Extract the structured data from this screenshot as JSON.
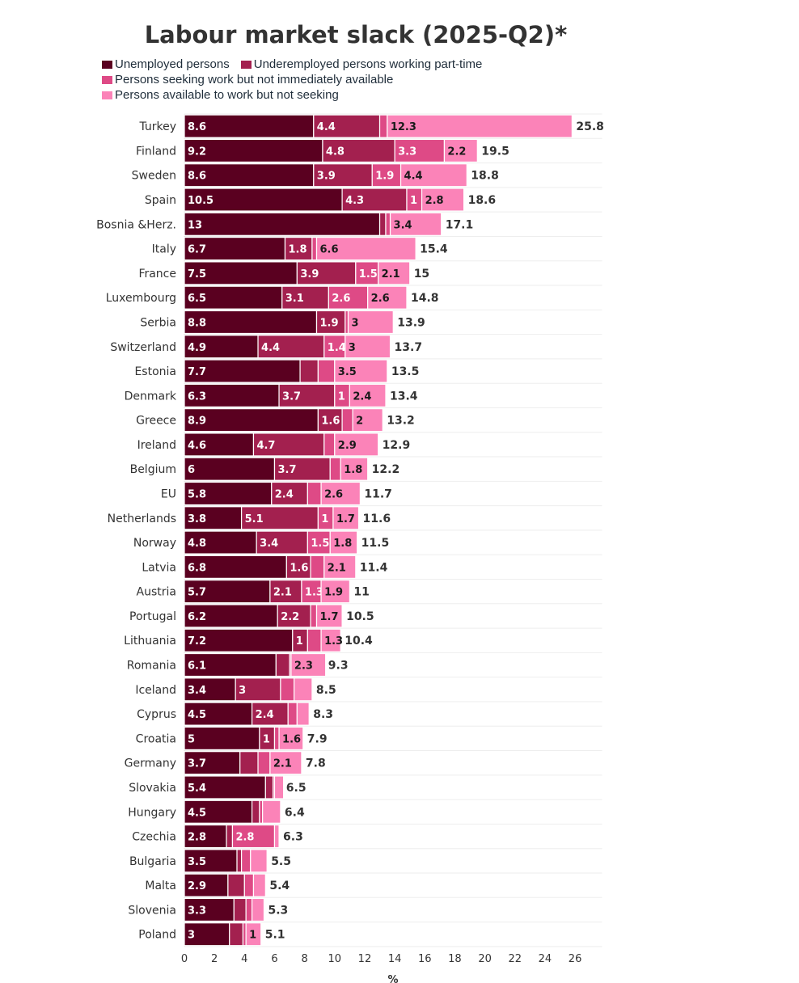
{
  "title": "Labour market slack (2025-Q2)*",
  "chart_data": {
    "type": "bar",
    "orientation": "horizontal",
    "stacked": true,
    "title": "Labour market slack (2025-Q2)*",
    "xlabel": "%",
    "ylabel": "",
    "xlim": [
      0,
      27.8
    ],
    "x_ticks": [
      "0",
      "2",
      "4",
      "6",
      "8",
      "10",
      "12",
      "14",
      "16",
      "18",
      "20",
      "22",
      "24",
      "26"
    ],
    "grid": true,
    "legend_position": "top-left",
    "categories": [
      "Turkey",
      "Finland",
      "Sweden",
      "Spain",
      "Bosnia &Herz.",
      "Italy",
      "France",
      "Luxembourg",
      "Serbia",
      "Switzerland",
      "Estonia",
      "Denmark",
      "Greece",
      "Ireland",
      "Belgium",
      "EU",
      "Netherlands",
      "Norway",
      "Latvia",
      "Austria",
      "Portugal",
      "Lithuania",
      "Romania",
      "Iceland",
      "Cyprus",
      "Croatia",
      "Germany",
      "Slovakia",
      "Hungary",
      "Czechia",
      "Bulgaria",
      "Malta",
      "Slovenia",
      "Poland"
    ],
    "series": [
      {
        "name": "Unemployed persons",
        "color": "#5a0020",
        "values": [
          8.6,
          9.2,
          8.6,
          10.5,
          13,
          6.7,
          7.5,
          6.5,
          8.8,
          4.9,
          7.7,
          6.3,
          8.9,
          4.6,
          6,
          5.8,
          3.8,
          4.8,
          6.8,
          5.7,
          6.2,
          7.2,
          6.1,
          3.4,
          4.5,
          5,
          3.7,
          5.4,
          4.5,
          2.8,
          3.5,
          2.9,
          3.3,
          3
        ]
      },
      {
        "name": "Underemployed persons working part-time",
        "color": "#a3204f",
        "values": [
          4.4,
          4.8,
          3.9,
          4.3,
          0.4,
          1.8,
          3.9,
          3.1,
          1.9,
          4.4,
          1.2,
          3.7,
          1.6,
          4.7,
          3.7,
          2.4,
          5.1,
          3.4,
          1.6,
          2.1,
          2.2,
          1,
          0.9,
          3,
          2.4,
          1,
          1.2,
          0.5,
          0.5,
          0.4,
          0.3,
          1.1,
          0.8,
          0.9
        ]
      },
      {
        "name": "Persons seeking work but not immediately available",
        "color": "#de4a86",
        "values": [
          0.5,
          3.3,
          1.9,
          1,
          0.3,
          0.3,
          1.5,
          2.6,
          0.2,
          1.4,
          1.1,
          1,
          0.7,
          0.7,
          0.7,
          0.9,
          1,
          1.5,
          0.9,
          1.3,
          0.4,
          0.9,
          0.1,
          0.9,
          0.6,
          0.3,
          0.8,
          0.1,
          0.2,
          2.8,
          0.6,
          0.6,
          0.4,
          0.2
        ]
      },
      {
        "name": "Persons available to work but not seeking",
        "color": "#fb83b8",
        "values": [
          12.3,
          2.2,
          4.4,
          2.8,
          3.4,
          6.6,
          2.1,
          2.6,
          3,
          3,
          3.5,
          2.4,
          2,
          2.9,
          1.8,
          2.6,
          1.7,
          1.8,
          2.1,
          1.9,
          1.7,
          1.3,
          2.3,
          1.2,
          0.8,
          1.6,
          2.1,
          0.6,
          1.2,
          0.3,
          1.1,
          0.8,
          0.8,
          1
        ]
      }
    ],
    "totals": [
      25.8,
      19.5,
      18.8,
      18.6,
      17.1,
      15.4,
      15,
      14.8,
      13.9,
      13.7,
      13.5,
      13.4,
      13.2,
      12.9,
      12.2,
      11.7,
      11.6,
      11.5,
      11.4,
      11,
      10.5,
      10.4,
      9.3,
      8.5,
      8.3,
      7.9,
      7.8,
      6.5,
      6.4,
      6.3,
      5.5,
      5.4,
      5.3,
      5.1
    ],
    "segment_labels": [
      [
        "8.6",
        "9.2",
        "8.6",
        "10.5",
        "13",
        "6.7",
        "7.5",
        "6.5",
        "8.8",
        "4.9",
        "7.7",
        "6.3",
        "8.9",
        "4.6",
        "6",
        "5.8",
        "3.8",
        "4.8",
        "6.8",
        "5.7",
        "6.2",
        "7.2",
        "6.1",
        "3.4",
        "4.5",
        "5",
        "3.7",
        "5.4",
        "4.5",
        "2.8",
        "3.5",
        "2.9",
        "3.3",
        "3"
      ],
      [
        "4.4",
        "4.8",
        "3.9",
        "4.3",
        "",
        "1.8",
        "3.9",
        "3.1",
        "1.9",
        "4.4",
        "",
        "3.7",
        "1.6",
        "4.7",
        "3.7",
        "2.4",
        "5.1",
        "3.4",
        "1.6",
        "2.1",
        "2.2",
        "1",
        "",
        "3",
        "2.4",
        "1",
        "",
        "",
        "",
        "",
        "",
        "",
        "",
        ""
      ],
      [
        "",
        "3.3",
        "1.9",
        "1",
        "",
        "",
        "1.5",
        "2.6",
        "",
        "1.4",
        "",
        "1",
        "",
        "",
        "",
        "",
        "1",
        "1.5",
        "",
        "1.3",
        "",
        "",
        "",
        "",
        "",
        "",
        "",
        "",
        "",
        "2.8",
        "",
        "",
        "",
        ""
      ],
      [
        "12.3",
        "2.2",
        "4.4",
        "2.8",
        "3.4",
        "6.6",
        "2.1",
        "2.6",
        "3",
        "3",
        "3.5",
        "2.4",
        "2",
        "2.9",
        "1.8",
        "2.6",
        "1.7",
        "1.8",
        "2.1",
        "1.9",
        "1.7",
        "1.3",
        "2.3",
        "",
        "",
        "1.6",
        "2.1",
        "",
        "",
        "",
        "",
        "",
        "",
        "1"
      ]
    ]
  }
}
